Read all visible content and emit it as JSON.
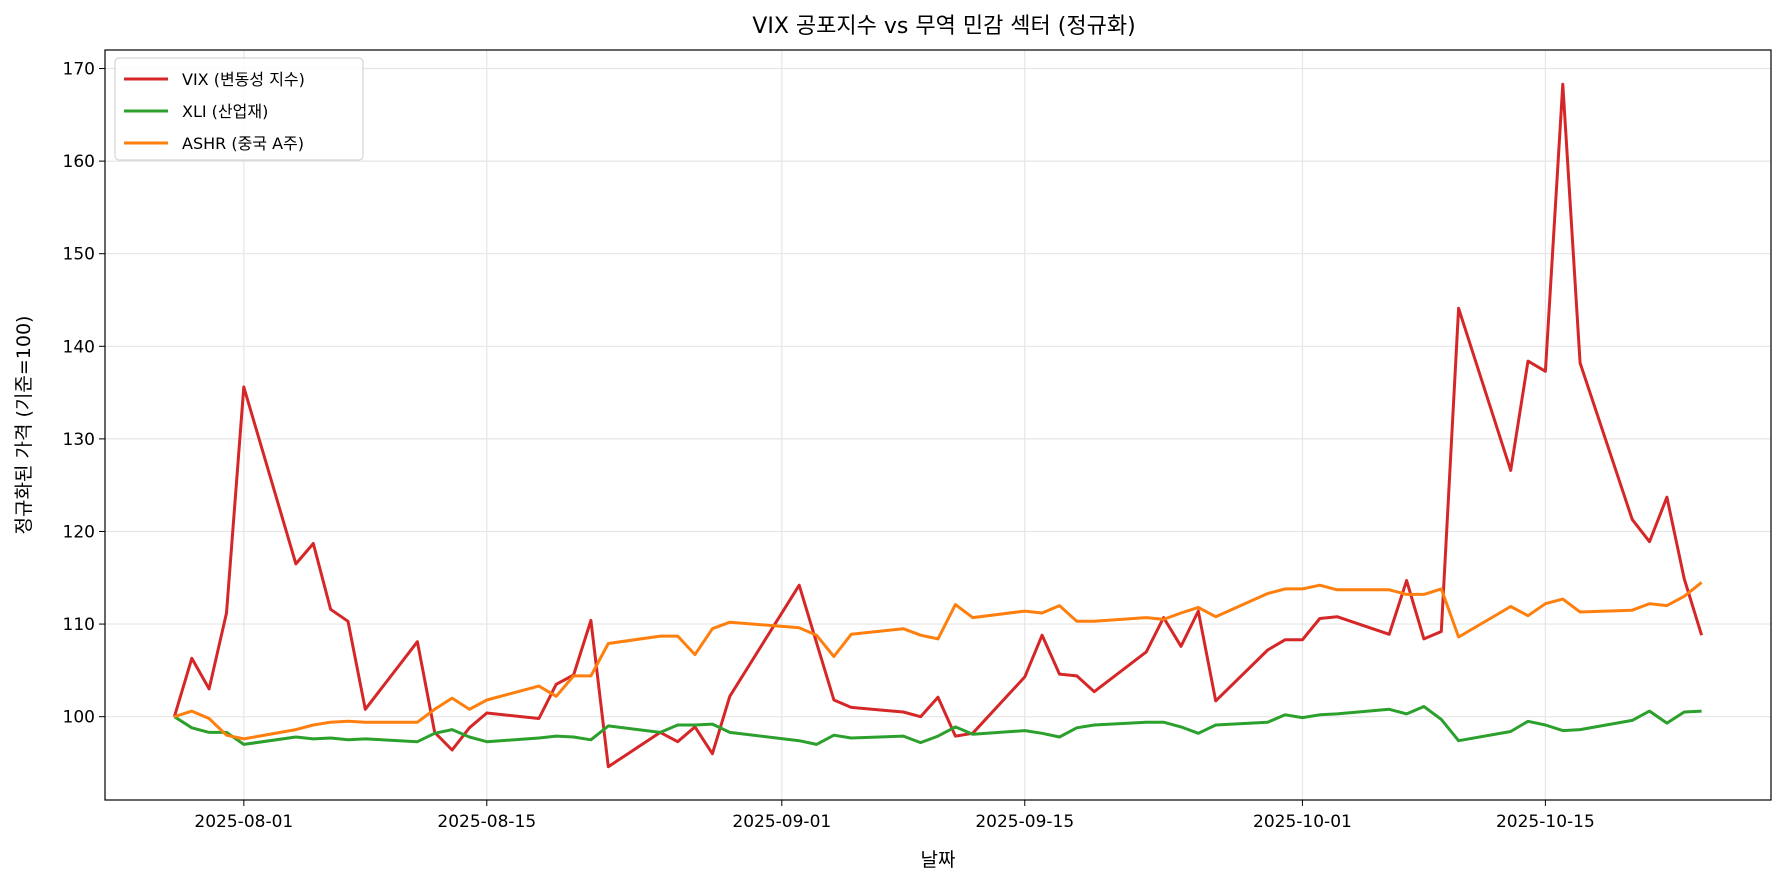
{
  "chart_data": {
    "type": "line",
    "title": "VIX 공포지수 vs 무역 민감 섹터 (정규화)",
    "xlabel": "날짜",
    "ylabel": "정규화된 가격 (기준=100)",
    "xlim": [
      "2025-07-24",
      "2025-10-28"
    ],
    "ylim": [
      91,
      172
    ],
    "xticks": [
      "2025-08-01",
      "2025-08-15",
      "2025-09-01",
      "2025-09-15",
      "2025-10-01",
      "2025-10-15"
    ],
    "yticks": [
      100,
      110,
      120,
      130,
      140,
      150,
      160,
      170
    ],
    "grid": true,
    "legend_position": "top-left",
    "x": [
      "2025-07-28",
      "2025-07-29",
      "2025-07-30",
      "2025-07-31",
      "2025-08-01",
      "2025-08-04",
      "2025-08-05",
      "2025-08-06",
      "2025-08-07",
      "2025-08-08",
      "2025-08-11",
      "2025-08-12",
      "2025-08-13",
      "2025-08-14",
      "2025-08-15",
      "2025-08-18",
      "2025-08-19",
      "2025-08-20",
      "2025-08-21",
      "2025-08-22",
      "2025-08-25",
      "2025-08-26",
      "2025-08-27",
      "2025-08-28",
      "2025-08-29",
      "2025-09-02",
      "2025-09-03",
      "2025-09-04",
      "2025-09-05",
      "2025-09-08",
      "2025-09-09",
      "2025-09-10",
      "2025-09-11",
      "2025-09-12",
      "2025-09-15",
      "2025-09-16",
      "2025-09-17",
      "2025-09-18",
      "2025-09-19",
      "2025-09-22",
      "2025-09-23",
      "2025-09-24",
      "2025-09-25",
      "2025-09-26",
      "2025-09-29",
      "2025-09-30",
      "2025-10-01",
      "2025-10-02",
      "2025-10-03",
      "2025-10-06",
      "2025-10-07",
      "2025-10-08",
      "2025-10-09",
      "2025-10-10",
      "2025-10-13",
      "2025-10-14",
      "2025-10-15",
      "2025-10-16",
      "2025-10-17",
      "2025-10-20",
      "2025-10-21",
      "2025-10-22",
      "2025-10-23",
      "2025-10-24"
    ],
    "series": [
      {
        "name": "VIX (변동성 지수)",
        "color": "#d62728",
        "values": [
          100,
          106.3,
          103.0,
          111.2,
          135.6,
          116.5,
          118.7,
          111.6,
          110.3,
          100.8,
          108.1,
          98.3,
          96.4,
          98.8,
          100.4,
          99.8,
          103.5,
          104.5,
          110.4,
          94.6,
          98.3,
          97.3,
          98.9,
          96.0,
          102.2,
          114.2,
          108.0,
          101.8,
          101.0,
          100.5,
          100.0,
          102.1,
          97.9,
          98.2,
          104.3,
          108.8,
          104.6,
          104.4,
          102.7,
          107.0,
          110.7,
          107.6,
          111.4,
          101.7,
          107.2,
          108.3,
          108.3,
          110.6,
          110.8,
          108.9,
          114.7,
          108.4,
          109.2,
          144.1,
          126.6,
          138.4,
          137.3,
          168.3,
          138.2,
          121.3,
          118.9,
          123.7,
          114.9,
          108.8
        ]
      },
      {
        "name": "XLI (산업재)",
        "color": "#2ca02c",
        "values": [
          100,
          98.8,
          98.3,
          98.3,
          97.0,
          97.8,
          97.6,
          97.7,
          97.5,
          97.6,
          97.3,
          98.2,
          98.6,
          97.8,
          97.3,
          97.7,
          97.9,
          97.8,
          97.5,
          99.0,
          98.3,
          99.1,
          99.1,
          99.2,
          98.3,
          97.4,
          97.0,
          98.0,
          97.7,
          97.9,
          97.2,
          97.9,
          98.9,
          98.1,
          98.5,
          98.2,
          97.8,
          98.8,
          99.1,
          99.4,
          99.4,
          98.9,
          98.2,
          99.1,
          99.4,
          100.2,
          99.9,
          100.2,
          100.3,
          100.8,
          100.3,
          101.1,
          99.7,
          97.4,
          98.4,
          99.5,
          99.1,
          98.5,
          98.6,
          99.6,
          100.6,
          99.3,
          100.5,
          100.6
        ]
      },
      {
        "name": "ASHR (중국 A주)",
        "color": "#ff7f0e",
        "values": [
          100,
          100.6,
          99.8,
          98.0,
          97.6,
          98.6,
          99.1,
          99.4,
          99.5,
          99.4,
          99.4,
          100.8,
          102.0,
          100.8,
          101.8,
          103.3,
          102.2,
          104.4,
          104.4,
          107.9,
          108.7,
          108.7,
          106.7,
          109.5,
          110.2,
          109.6,
          108.8,
          106.5,
          108.9,
          109.5,
          108.8,
          108.4,
          112.1,
          110.7,
          111.4,
          111.2,
          112.0,
          110.3,
          110.3,
          110.7,
          110.5,
          111.2,
          111.8,
          110.8,
          113.3,
          113.8,
          113.8,
          114.2,
          113.7,
          113.7,
          113.2,
          113.2,
          113.8,
          108.6,
          111.9,
          110.9,
          112.2,
          112.7,
          111.3,
          111.5,
          112.2,
          112.0,
          113.0,
          114.5
        ]
      }
    ]
  }
}
